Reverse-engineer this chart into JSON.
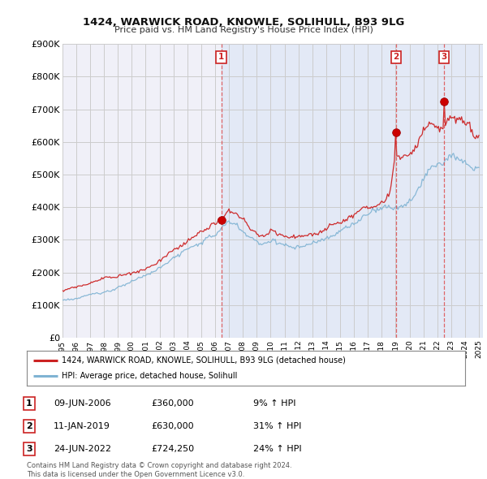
{
  "title": "1424, WARWICK ROAD, KNOWLE, SOLIHULL, B93 9LG",
  "subtitle": "Price paid vs. HM Land Registry's House Price Index (HPI)",
  "background_color": "#ffffff",
  "plot_bg_color": "#f0f0f0",
  "grid_color": "#ffffff",
  "ylim": [
    0,
    900000
  ],
  "yticks": [
    0,
    100000,
    200000,
    300000,
    400000,
    500000,
    600000,
    700000,
    800000,
    900000
  ],
  "ytick_labels": [
    "£0",
    "£100K",
    "£200K",
    "£300K",
    "£400K",
    "£500K",
    "£600K",
    "£700K",
    "£800K",
    "£900K"
  ],
  "red_label": "1424, WARWICK ROAD, KNOWLE, SOLIHULL, B93 9LG (detached house)",
  "blue_label": "HPI: Average price, detached house, Solihull",
  "sale_points": [
    {
      "year": 2006.45,
      "price": 360000,
      "label": "1"
    },
    {
      "year": 2019.03,
      "price": 630000,
      "label": "2"
    },
    {
      "year": 2022.48,
      "price": 724250,
      "label": "3"
    }
  ],
  "sale_annotations": [
    {
      "label": "1",
      "date": "09-JUN-2006",
      "price": "£360,000",
      "hpi": "9% ↑ HPI"
    },
    {
      "label": "2",
      "date": "11-JAN-2019",
      "price": "£630,000",
      "hpi": "31% ↑ HPI"
    },
    {
      "label": "3",
      "date": "24-JUN-2022",
      "price": "£724,250",
      "hpi": "24% ↑ HPI"
    }
  ],
  "footer": "Contains HM Land Registry data © Crown copyright and database right 2024.\nThis data is licensed under the Open Government Licence v3.0.",
  "x_start_year": 1995,
  "x_end_year": 2025
}
